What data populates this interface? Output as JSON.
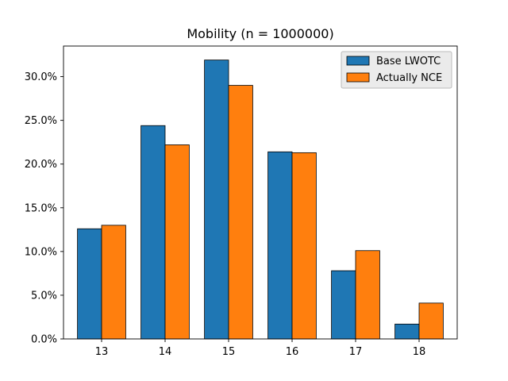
{
  "chart_data": {
    "type": "bar",
    "title": "Mobility (n = 1000000)",
    "xlabel": "",
    "ylabel": "",
    "categories": [
      "13",
      "14",
      "15",
      "16",
      "17",
      "18"
    ],
    "series": [
      {
        "name": "Base LWOTC",
        "color": "#1f77b4",
        "values": [
          12.6,
          24.4,
          31.9,
          21.4,
          7.8,
          1.7
        ]
      },
      {
        "name": "Actually NCE",
        "color": "#ff7f0e",
        "values": [
          13.0,
          22.2,
          29.0,
          21.3,
          10.1,
          4.1
        ]
      }
    ],
    "ylim": [
      0,
      33.5
    ],
    "yticks": [
      0,
      5,
      10,
      15,
      20,
      25,
      30
    ],
    "ytick_labels": [
      "0.0%",
      "5.0%",
      "10.0%",
      "15.0%",
      "20.0%",
      "25.0%",
      "30.0%"
    ],
    "grid": false,
    "legend_position": "top-right"
  }
}
